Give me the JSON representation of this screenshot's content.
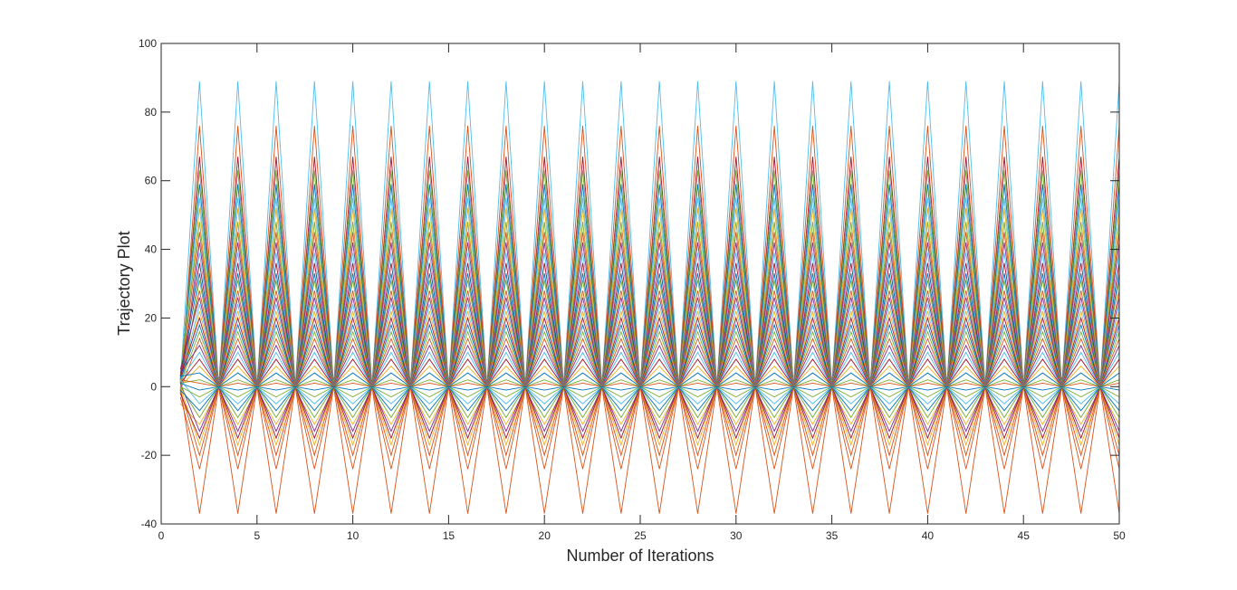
{
  "chart_data": {
    "type": "line",
    "title": "",
    "xlabel": "Number of Iterations",
    "ylabel": "Trajectory Plot",
    "xlim": [
      0,
      50
    ],
    "ylim": [
      -40,
      100
    ],
    "x_ticks": [
      0,
      5,
      10,
      15,
      20,
      25,
      30,
      35,
      40,
      45,
      50
    ],
    "y_ticks": [
      -40,
      -20,
      0,
      20,
      40,
      60,
      80,
      100
    ],
    "x_tick_labels": [
      "0",
      "5",
      "10",
      "15",
      "20",
      "25",
      "30",
      "35",
      "40",
      "45",
      "50"
    ],
    "y_tick_labels": [
      "-40",
      "-20",
      "0",
      "20",
      "40",
      "60",
      "80",
      "100"
    ],
    "grid": false,
    "legend": "none",
    "box": true,
    "x": [
      1,
      2,
      3,
      4,
      5,
      6,
      7,
      8,
      9,
      10,
      11,
      12,
      13,
      14,
      15,
      16,
      17,
      18,
      19,
      20,
      21,
      22,
      23,
      24,
      25,
      26,
      27,
      28,
      29,
      30,
      31,
      32,
      33,
      34,
      35,
      36,
      37,
      38,
      39,
      40,
      41,
      42,
      43,
      44,
      45,
      46,
      47,
      48,
      49,
      50
    ],
    "pattern": "Each trajectory alternates period-2 between a value at even iterations and a value near 0 at odd iterations after iteration 1.",
    "colors": [
      "#0072BD",
      "#D95319",
      "#EDB120",
      "#7E2F8E",
      "#77AC30",
      "#4DBEEE",
      "#A2142F"
    ],
    "series": [
      {
        "color": "#4DBEEE",
        "start": 1,
        "odd": 0,
        "even": 89
      },
      {
        "color": "#D95319",
        "start": -2,
        "odd": 0,
        "even": 76
      },
      {
        "color": "#D95319",
        "start": 0,
        "odd": 0,
        "even": -37
      },
      {
        "color": "#A2142F",
        "start": 1,
        "odd": 0,
        "even": 67
      },
      {
        "color": "#77AC30",
        "start": 2,
        "odd": 0,
        "even": 63
      },
      {
        "color": "#0072BD",
        "start": 2,
        "odd": 0,
        "even": 59
      },
      {
        "color": "#4DBEEE",
        "start": 3,
        "odd": 0,
        "even": 55
      },
      {
        "color": "#EDB120",
        "start": 1,
        "odd": 0,
        "even": 52
      },
      {
        "color": "#77AC30",
        "start": 4,
        "odd": 0,
        "even": 48
      },
      {
        "color": "#D95319",
        "start": 2,
        "odd": 0,
        "even": 45
      },
      {
        "color": "#7E2F8E",
        "start": -1,
        "odd": 0,
        "even": 42
      },
      {
        "color": "#4DBEEE",
        "start": 1,
        "odd": 0,
        "even": 39
      },
      {
        "color": "#A2142F",
        "start": 3,
        "odd": 0,
        "even": 36
      },
      {
        "color": "#0072BD",
        "start": 2,
        "odd": 0,
        "even": 33
      },
      {
        "color": "#77AC30",
        "start": -2,
        "odd": 0,
        "even": 31
      },
      {
        "color": "#D95319",
        "start": 2,
        "odd": 0,
        "even": 28
      },
      {
        "color": "#7E2F8E",
        "start": 5,
        "odd": 0,
        "even": 26
      },
      {
        "color": "#4DBEEE",
        "start": 1,
        "odd": 0,
        "even": 24
      },
      {
        "color": "#EDB120",
        "start": 0,
        "odd": 0,
        "even": 22
      },
      {
        "color": "#A2142F",
        "start": 3,
        "odd": 0,
        "even": 20
      },
      {
        "color": "#0072BD",
        "start": 2,
        "odd": 0,
        "even": 18
      },
      {
        "color": "#77AC30",
        "start": 1,
        "odd": 0,
        "even": 16
      },
      {
        "color": "#D95319",
        "start": -1,
        "odd": 0,
        "even": 14
      },
      {
        "color": "#7E2F8E",
        "start": 4,
        "odd": 0,
        "even": 12
      },
      {
        "color": "#4DBEEE",
        "start": 2,
        "odd": 0,
        "even": 10
      },
      {
        "color": "#A2142F",
        "start": 1,
        "odd": 0,
        "even": 8
      },
      {
        "color": "#EDB120",
        "start": 0,
        "odd": 0,
        "even": 6
      },
      {
        "color": "#0072BD",
        "start": 3,
        "odd": 0,
        "even": 4
      },
      {
        "color": "#77AC30",
        "start": 1,
        "odd": 0,
        "even": 2
      },
      {
        "color": "#D95319",
        "start": 2,
        "odd": 0,
        "even": 1
      },
      {
        "color": "#EDB120",
        "start": -5,
        "odd": -1,
        "even": -11
      },
      {
        "color": "#D95319",
        "start": -3,
        "odd": 0,
        "even": -24
      },
      {
        "color": "#D95319",
        "start": -1,
        "odd": 0,
        "even": -20
      },
      {
        "color": "#EDB120",
        "start": 0,
        "odd": 0,
        "even": -17
      },
      {
        "color": "#A2142F",
        "start": -2,
        "odd": 0,
        "even": -15
      },
      {
        "color": "#7E2F8E",
        "start": 1,
        "odd": 0,
        "even": -13
      },
      {
        "color": "#77AC30",
        "start": 0,
        "odd": 0,
        "even": -9
      },
      {
        "color": "#0072BD",
        "start": -1,
        "odd": 0,
        "even": -7
      },
      {
        "color": "#4DBEEE",
        "start": 2,
        "odd": 0,
        "even": -5
      },
      {
        "color": "#77AC30",
        "start": 0,
        "odd": 0,
        "even": -3
      },
      {
        "color": "#0072BD",
        "start": 1,
        "odd": 0,
        "even": -1
      }
    ]
  }
}
